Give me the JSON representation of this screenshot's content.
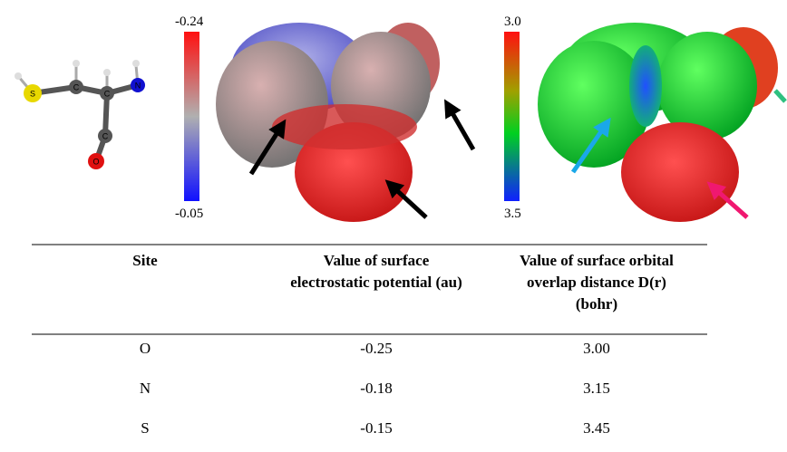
{
  "figure": {
    "molecule_atoms": [
      "S",
      "C",
      "C",
      "N",
      "C",
      "O"
    ],
    "colorbar_esp": {
      "top": "-0.24",
      "bottom": "-0.05"
    },
    "colorbar_overlap": {
      "top": "3.0",
      "bottom": "3.5"
    }
  },
  "table": {
    "headers": [
      [
        "Site"
      ],
      [
        "Value of surface",
        "electrostatic potential (au)"
      ],
      [
        "Value of surface orbital",
        "overlap distance D(r)",
        "(bohr)"
      ]
    ],
    "rows": [
      [
        "O",
        "-0.25",
        "3.00"
      ],
      [
        "N",
        "-0.18",
        "3.15"
      ],
      [
        "S",
        "-0.15",
        "3.45"
      ]
    ]
  }
}
